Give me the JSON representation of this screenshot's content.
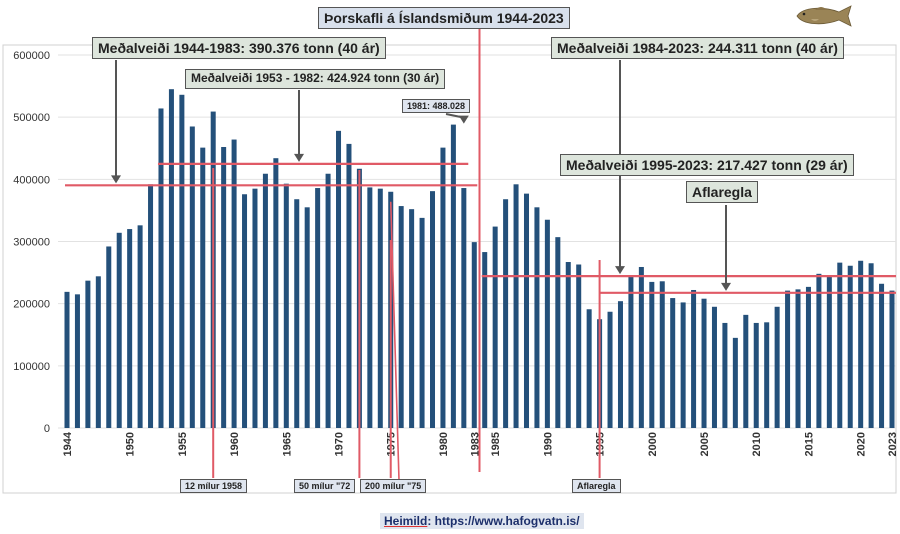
{
  "chart_data": {
    "type": "bar",
    "title": "Þorskafli á Íslandsmiðum 1944-2023",
    "ylim": [
      0,
      600000
    ],
    "yticks": [
      0,
      100000,
      200000,
      300000,
      400000,
      500000,
      600000
    ],
    "ytick_labels": [
      "0",
      "100000",
      "200000",
      "300000",
      "400000",
      "500000",
      "600000"
    ],
    "xtick_labels": [
      "1944",
      "1950",
      "1955",
      "1960",
      "1965",
      "1970",
      "1975",
      "1980",
      "1983",
      "1985",
      "1990",
      "1995",
      "2000",
      "2005",
      "2010",
      "2015",
      "2020",
      "2023"
    ],
    "categories": [
      1944,
      1945,
      1946,
      1947,
      1948,
      1949,
      1950,
      1951,
      1952,
      1953,
      1954,
      1955,
      1956,
      1957,
      1958,
      1959,
      1960,
      1961,
      1962,
      1963,
      1964,
      1965,
      1966,
      1967,
      1968,
      1969,
      1970,
      1971,
      1972,
      1973,
      1974,
      1975,
      1976,
      1977,
      1978,
      1979,
      1980,
      1981,
      1982,
      1983,
      1984,
      1985,
      1986,
      1987,
      1988,
      1989,
      1990,
      1991,
      1992,
      1993,
      1994,
      1995,
      1996,
      1997,
      1998,
      1999,
      2000,
      2001,
      2002,
      2003,
      2004,
      2005,
      2006,
      2007,
      2008,
      2009,
      2010,
      2011,
      2012,
      2013,
      2014,
      2015,
      2016,
      2017,
      2018,
      2019,
      2020,
      2021,
      2022,
      2023
    ],
    "values": [
      219000,
      215000,
      237000,
      244000,
      292000,
      314000,
      320000,
      326000,
      392000,
      514000,
      545000,
      536000,
      485000,
      451000,
      509000,
      452000,
      464000,
      376000,
      385000,
      409000,
      434000,
      393000,
      368000,
      355000,
      386000,
      409000,
      478000,
      457000,
      417000,
      387000,
      385000,
      380000,
      357000,
      352000,
      338000,
      381000,
      451000,
      488028,
      386000,
      299000,
      283000,
      324000,
      368000,
      392000,
      377000,
      355000,
      335000,
      307000,
      267000,
      263000,
      191000,
      175000,
      187000,
      204000,
      243000,
      259000,
      235000,
      236000,
      209000,
      202000,
      222000,
      208000,
      195000,
      169000,
      145000,
      182000,
      169000,
      170000,
      195000,
      221000,
      223000,
      227000,
      248000,
      244000,
      266000,
      261000,
      269000,
      265000,
      232000,
      221000
    ],
    "color": "#24507a",
    "reference_lines": [
      {
        "name": "Meðalveiði 1944-1983",
        "value": 390376,
        "from": 1944,
        "to": 1983
      },
      {
        "name": "Meðalveiði 1953 - 1982",
        "value": 424924,
        "from": 1953,
        "to": 1982
      },
      {
        "name": "Meðalveiði 1984-2023",
        "value": 244311,
        "from": 1984,
        "to": 2023
      },
      {
        "name": "Meðalveiði 1995-2023",
        "value": 217427,
        "from": 1995,
        "to": 2023
      }
    ],
    "markers": [
      {
        "year": 1958,
        "label": "12 mílur 1958"
      },
      {
        "year": 1972,
        "label": "50 mílur \"72"
      },
      {
        "year": 1975,
        "label": "200 mílur \"75"
      },
      {
        "year": 1983.5,
        "label": ""
      },
      {
        "year": 1995,
        "label": "Aflaregla"
      }
    ],
    "annotations": {
      "title": "Þorskafli á Íslandsmiðum 1944-2023",
      "avg_1944_1983": "Meðalveiði 1944-1983:  390.376 tonn (40 ár)",
      "avg_1953_1982": "Meðalveiði 1953 - 1982: 424.924 tonn (30 ár)",
      "avg_1984_2023": "Meðalveiði 1984-2023:  244.311 tonn (40 ár)",
      "avg_1995_2023": "Meðalveiði 1995-2023:  217.427 tonn (29 ár)",
      "aflaregla": "Aflaregla",
      "peak_1981": "1981: 488.028",
      "m1958": "12 mílur 1958",
      "m1972": "50 mílur \"72",
      "m1975": "200 mílur \"75",
      "m1995": "Aflaregla",
      "source_label": "Heimild",
      "source_url": ": https://www.hafogvatn.is/"
    }
  }
}
